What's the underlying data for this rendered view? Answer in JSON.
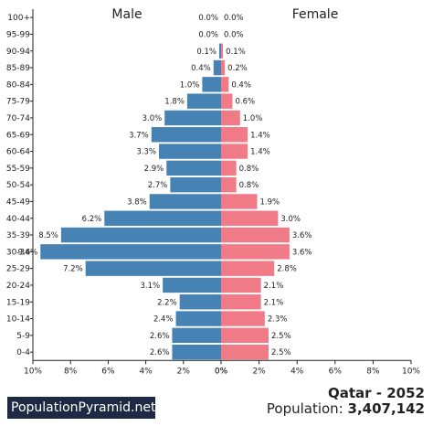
{
  "chart_data": {
    "type": "bar",
    "layout": "population-pyramid",
    "left_header": "Male",
    "right_header": "Female",
    "age_groups": [
      "100+",
      "95-99",
      "90-94",
      "85-89",
      "80-84",
      "75-79",
      "70-74",
      "65-69",
      "60-64",
      "55-59",
      "50-54",
      "45-49",
      "40-44",
      "35-39",
      "30-34",
      "25-29",
      "20-24",
      "15-19",
      "10-14",
      "5-9",
      "0-4"
    ],
    "series": [
      {
        "name": "Male",
        "color": "#4682b4",
        "values": [
          0.0,
          0.0,
          0.1,
          0.4,
          1.0,
          1.8,
          3.0,
          3.7,
          3.3,
          2.9,
          2.7,
          3.8,
          6.2,
          8.5,
          9.6,
          7.2,
          3.1,
          2.2,
          2.4,
          2.6,
          2.6
        ],
        "labels": [
          "0.0%",
          "0.0%",
          "0.1%",
          "0.4%",
          "1.0%",
          "1.8%",
          "3.0%",
          "3.7%",
          "3.3%",
          "2.9%",
          "2.7%",
          "3.8%",
          "6.2%",
          "8.5%",
          "9.6%",
          "7.2%",
          "3.1%",
          "2.2%",
          "2.4%",
          "2.6%",
          "2.6%"
        ]
      },
      {
        "name": "Female",
        "color": "#f07b87",
        "values": [
          0.0,
          0.0,
          0.1,
          0.2,
          0.4,
          0.6,
          1.0,
          1.4,
          1.4,
          0.8,
          0.8,
          1.9,
          3.0,
          3.6,
          3.6,
          2.8,
          2.1,
          2.1,
          2.3,
          2.5,
          2.5
        ],
        "labels": [
          "0.0%",
          "0.0%",
          "0.1%",
          "0.2%",
          "0.4%",
          "0.6%",
          "1.0%",
          "1.4%",
          "1.4%",
          "0.8%",
          "0.8%",
          "1.9%",
          "3.0%",
          "3.6%",
          "3.6%",
          "2.8%",
          "2.1%",
          "2.1%",
          "2.3%",
          "2.5%",
          "2.5%"
        ]
      }
    ],
    "x_range": [
      0,
      10
    ],
    "male_ticks": [
      "10%",
      "8%",
      "6%",
      "4%",
      "2%",
      "0%"
    ],
    "female_ticks": [
      "0%",
      "2%",
      "4%",
      "6%",
      "8%",
      "10%"
    ],
    "grid": false
  },
  "brand": "PopulationPyramid.net",
  "country_year": "Qatar - 2052",
  "population_label": "Population:",
  "population_value": "3,407,142"
}
